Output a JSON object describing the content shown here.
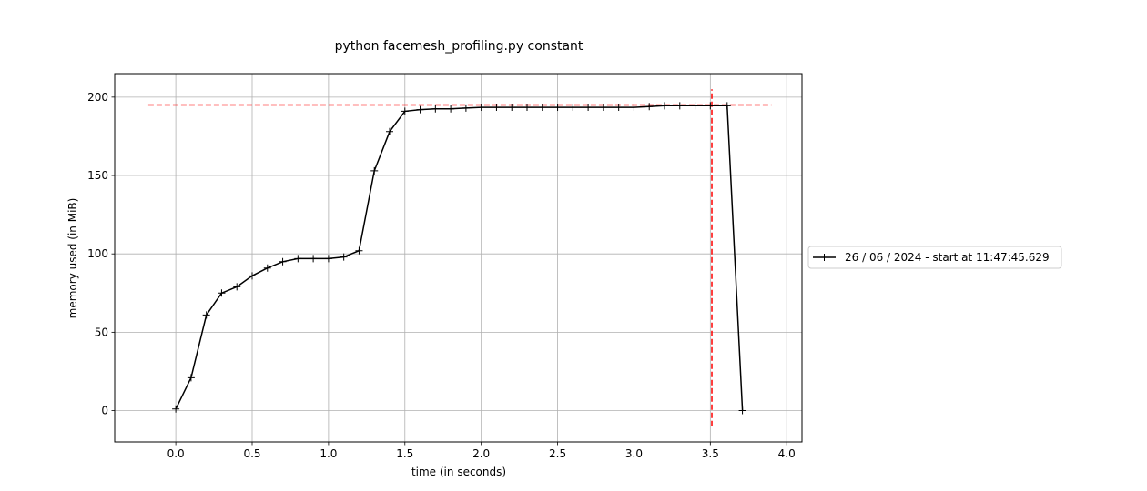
{
  "chart_data": {
    "type": "line",
    "title": "python facemesh_profiling.py constant",
    "xlabel": "time (in seconds)",
    "ylabel": "memory used (in MiB)",
    "xlim": [
      -0.4,
      4.1
    ],
    "ylim": [
      -20,
      215
    ],
    "xticks": [
      0.0,
      0.5,
      1.0,
      1.5,
      2.0,
      2.5,
      3.0,
      3.5,
      4.0
    ],
    "xtick_labels": [
      "0.0",
      "0.5",
      "1.0",
      "1.5",
      "2.0",
      "2.5",
      "3.0",
      "3.5",
      "4.0"
    ],
    "yticks": [
      0,
      50,
      100,
      150,
      200
    ],
    "ytick_labels": [
      "0",
      "50",
      "100",
      "150",
      "200"
    ],
    "grid": true,
    "legend_position": "right, outside plot",
    "series": [
      {
        "name": "26 / 06 / 2024 - start at 11:47:45.629",
        "color": "#000000",
        "marker": "+",
        "x": [
          0.0,
          0.1,
          0.2,
          0.3,
          0.4,
          0.5,
          0.6,
          0.7,
          0.8,
          0.9,
          1.0,
          1.1,
          1.2,
          1.3,
          1.4,
          1.5,
          1.6,
          1.7,
          1.8,
          1.9,
          2.0,
          2.1,
          2.2,
          2.3,
          2.4,
          2.5,
          2.6,
          2.7,
          2.8,
          2.9,
          3.0,
          3.1,
          3.2,
          3.3,
          3.4,
          3.5,
          3.61,
          3.71
        ],
        "y": [
          1,
          21,
          61,
          75,
          79,
          86,
          91,
          95,
          97,
          97,
          97,
          98,
          102,
          153,
          178,
          191,
          192,
          192.5,
          192.5,
          193,
          193.5,
          193.5,
          193.5,
          193.5,
          193.5,
          193.5,
          193.5,
          193.5,
          193.5,
          193.5,
          193.5,
          194,
          194.5,
          194.5,
          194.5,
          194.5,
          194.5,
          0
        ]
      }
    ],
    "reference_lines": [
      {
        "orientation": "horizontal",
        "y": 195,
        "x_from": -0.18,
        "x_to": 3.9,
        "color": "#ff0000",
        "style": "dashed"
      },
      {
        "orientation": "vertical",
        "x": 3.51,
        "y_from": -10,
        "y_to": 205,
        "color": "#ff0000",
        "style": "dashed"
      }
    ]
  }
}
